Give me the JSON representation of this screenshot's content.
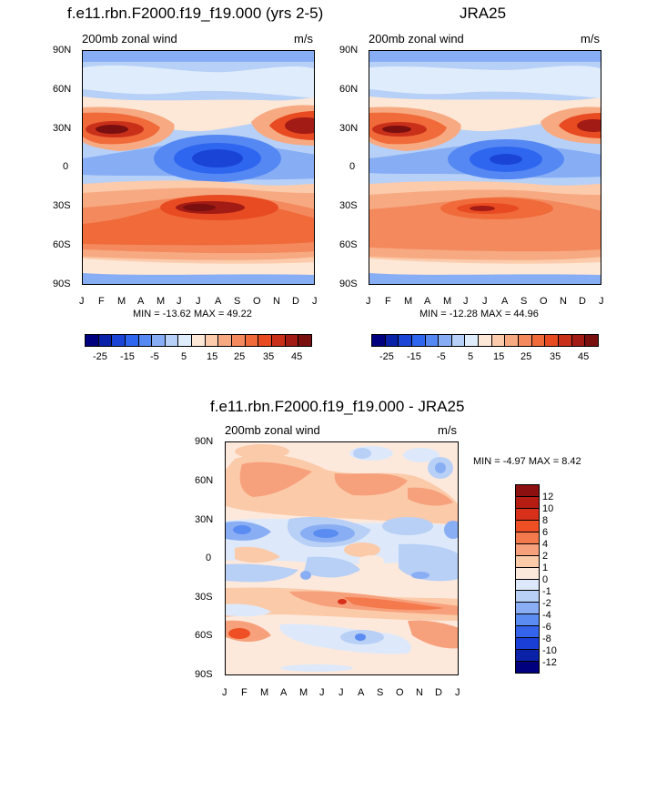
{
  "chart_data": [
    {
      "type": "heatmap",
      "panel_title": "f.e11.rbn.F2000.f19_f19.000 (yrs 2-5)",
      "left_label": "200mb zonal wind",
      "right_label": "m/s",
      "x_ticks": [
        "J",
        "F",
        "M",
        "A",
        "M",
        "J",
        "J",
        "A",
        "S",
        "O",
        "N",
        "D",
        "J"
      ],
      "y_ticks": [
        "90N",
        "60N",
        "30N",
        "0",
        "30S",
        "60S",
        "90S"
      ],
      "stats_text": "MIN = -13.62 MAX =  49.22",
      "min": -13.62,
      "max": 49.22,
      "colorbar_levels": [
        -30,
        -25,
        -20,
        -15,
        -10,
        -5,
        0,
        5,
        10,
        15,
        20,
        25,
        30,
        35,
        40,
        45,
        50
      ],
      "colorbar_labels": [
        "-25",
        "-15",
        "-5",
        "5",
        "15",
        "25",
        "35",
        "45"
      ]
    },
    {
      "type": "heatmap",
      "panel_title": "JRA25",
      "left_label": "200mb zonal wind",
      "right_label": "m/s",
      "x_ticks": [
        "J",
        "F",
        "M",
        "A",
        "M",
        "J",
        "J",
        "A",
        "S",
        "O",
        "N",
        "D",
        "J"
      ],
      "y_ticks": [
        "90N",
        "60N",
        "30N",
        "0",
        "30S",
        "60S",
        "90S"
      ],
      "stats_text": "MIN = -12.28 MAX =  44.96",
      "min": -12.28,
      "max": 44.96,
      "colorbar_levels": [
        -30,
        -25,
        -20,
        -15,
        -10,
        -5,
        0,
        5,
        10,
        15,
        20,
        25,
        30,
        35,
        40,
        45,
        50
      ],
      "colorbar_labels": [
        "-25",
        "-15",
        "-5",
        "5",
        "15",
        "25",
        "35",
        "45"
      ]
    },
    {
      "type": "heatmap",
      "panel_title": "f.e11.rbn.F2000.f19_f19.000 - JRA25",
      "left_label": "200mb zonal wind",
      "right_label": "m/s",
      "x_ticks": [
        "J",
        "F",
        "M",
        "A",
        "M",
        "J",
        "J",
        "A",
        "S",
        "O",
        "N",
        "D",
        "J"
      ],
      "y_ticks": [
        "90N",
        "60N",
        "30N",
        "0",
        "30S",
        "60S",
        "90S"
      ],
      "stats_text": "MIN =  -4.97 MAX =   8.42",
      "min": -4.97,
      "max": 8.42,
      "colorbar_labels": [
        "12",
        "10",
        "8",
        "6",
        "4",
        "2",
        "1",
        "0",
        "-1",
        "-2",
        "-4",
        "-6",
        "-8",
        "-10",
        "-12"
      ]
    }
  ],
  "colors": {
    "abs_scale": [
      "#00007f",
      "#0a22a8",
      "#1a44d6",
      "#2f66f0",
      "#5588f2",
      "#87aef5",
      "#b7d0f7",
      "#dfecfb",
      "#fde7d6",
      "#fbcbab",
      "#f7aa82",
      "#f4895e",
      "#f06a3a",
      "#e84b21",
      "#c9301a",
      "#a21b14",
      "#7a0f0f"
    ],
    "diff_scale": [
      "#8c1010",
      "#b51d12",
      "#d8301a",
      "#ef4f24",
      "#f47a4d",
      "#f7a07c",
      "#fbcaa9",
      "#fde9dc",
      "#dde9fa",
      "#b8d0f6",
      "#8aaef4",
      "#5a8cf1",
      "#3564ec",
      "#1a3fd6",
      "#0a22a8",
      "#00007f"
    ]
  }
}
